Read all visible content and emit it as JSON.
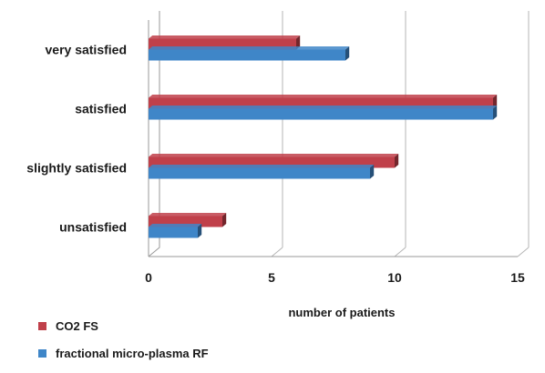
{
  "chart_data": {
    "type": "bar",
    "orientation": "horizontal",
    "categories": [
      "very satisfied",
      "satisfied",
      "slightly satisfied",
      "unsatisfied"
    ],
    "series": [
      {
        "name": "CO2 FS",
        "color": "#c0404a",
        "values": [
          6,
          14,
          10,
          3
        ]
      },
      {
        "name": "fractional micro-plasma RF",
        "color": "#3f86c8",
        "values": [
          8,
          14,
          9,
          2
        ]
      }
    ],
    "xlabel": "number of patients",
    "ylabel": "",
    "title": "",
    "xlim": [
      0,
      15
    ],
    "xticks": [
      0,
      5,
      10,
      15
    ],
    "grid": true,
    "legend": "bottom-left"
  }
}
